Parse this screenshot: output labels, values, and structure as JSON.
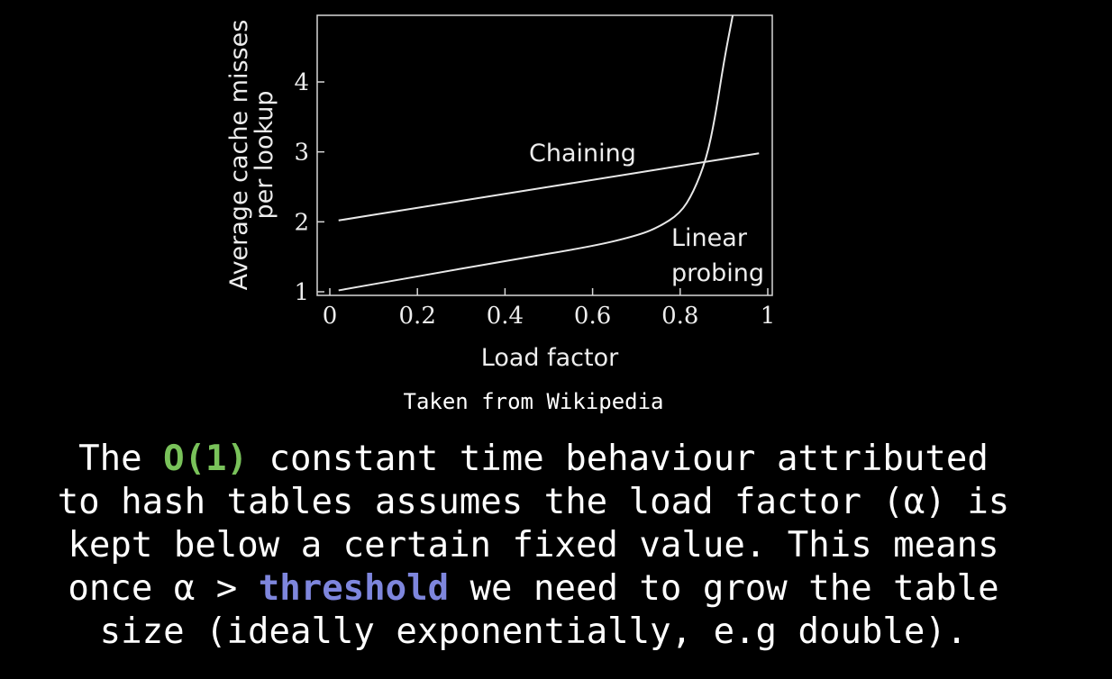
{
  "chart_data": {
    "type": "line",
    "xlabel": "Load factor",
    "ylabel": [
      "Average cache misses",
      "per lookup"
    ],
    "xlim": [
      0,
      1
    ],
    "ylim": [
      1,
      5
    ],
    "x_ticks": [
      "0",
      "0.2",
      "0.4",
      "0.6",
      "0.8",
      "1"
    ],
    "y_ticks": [
      "1",
      "2",
      "3",
      "4"
    ],
    "series": [
      {
        "name": "Chaining",
        "x": [
          0.02,
          0.2,
          0.4,
          0.6,
          0.8,
          0.98
        ],
        "y": [
          2.02,
          2.2,
          2.4,
          2.6,
          2.8,
          2.98
        ]
      },
      {
        "name": "Linear probing",
        "x": [
          0.02,
          0.2,
          0.4,
          0.6,
          0.7,
          0.75,
          0.8,
          0.83,
          0.86,
          0.88,
          0.9,
          0.92
        ],
        "y": [
          1.02,
          1.22,
          1.44,
          1.65,
          1.8,
          1.92,
          2.12,
          2.42,
          2.9,
          3.5,
          4.3,
          5.0
        ]
      }
    ],
    "labels": {
      "chaining": "Chaining",
      "linear_line1": "Linear",
      "linear_line2": "probing"
    },
    "grid": false
  },
  "caption": "Taken from Wikipedia",
  "body": {
    "line1_a": "The ",
    "line1_kw": "O(1)",
    "line1_b": " constant time behaviour attributed",
    "line2": "to hash tables assumes the load factor (α) is",
    "line3": "kept below a certain fixed value. This means",
    "line4_a": "once α > ",
    "line4_kw": "threshold",
    "line4_b": " we need to grow the table",
    "line5": "size (ideally exponentially, e.g double).",
    "kw_green": "#79c25a",
    "kw_blue": "#7e86dd"
  }
}
